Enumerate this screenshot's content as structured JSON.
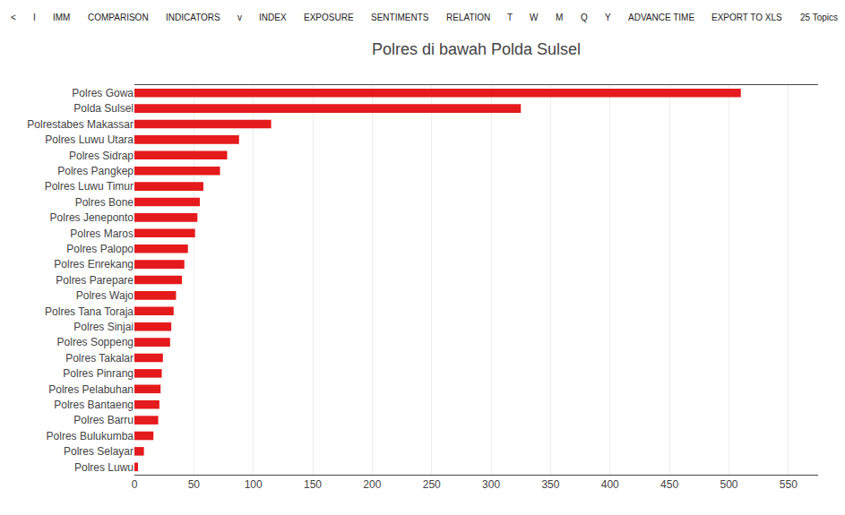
{
  "chart_data": {
    "type": "bar",
    "orientation": "horizontal",
    "title": "Polres di bawah Polda Sulsel",
    "categories": [
      "Polres Luwu",
      "Polres Selayar",
      "Polres Bulukumba",
      "Polres Barru",
      "Polres Bantaeng",
      "Polres Pelabuhan",
      "Polres Pinrang",
      "Polres Takalar",
      "Polres Soppeng",
      "Polres Sinjai",
      "Polres Tana Toraja",
      "Polres Wajo",
      "Polres Parepare",
      "Polres Enrekang",
      "Polres Palopo",
      "Polres Maros",
      "Polres Jeneponto",
      "Polres Bone",
      "Polres Luwu Timur",
      "Polres Pangkep",
      "Polres Sidrap",
      "Polres Luwu Utara",
      "Polrestabes Makassar",
      "Polda Sulsel",
      "Polres Gowa"
    ],
    "values": [
      3,
      8,
      16,
      20,
      21,
      22,
      23,
      24,
      30,
      31,
      33,
      35,
      40,
      42,
      45,
      51,
      53,
      55,
      58,
      72,
      78,
      88,
      115,
      325,
      510
    ],
    "color": "#e41a1c",
    "xlim": [
      0,
      575
    ],
    "xticks": [
      0,
      50,
      100,
      150,
      200,
      250,
      300,
      350,
      400,
      450,
      500,
      550
    ],
    "grid": true,
    "annotations": [
      "<",
      "I",
      "IMM",
      "COMPARISON",
      "INDICATORS",
      "v",
      "INDEX",
      "EXPOSURE",
      "SENTIMENTS",
      "RELATION",
      "T",
      "W",
      "M",
      "Q",
      "Y",
      "ADVANCE TIME",
      "EXPORT TO XLS",
      "25 Topics"
    ]
  }
}
